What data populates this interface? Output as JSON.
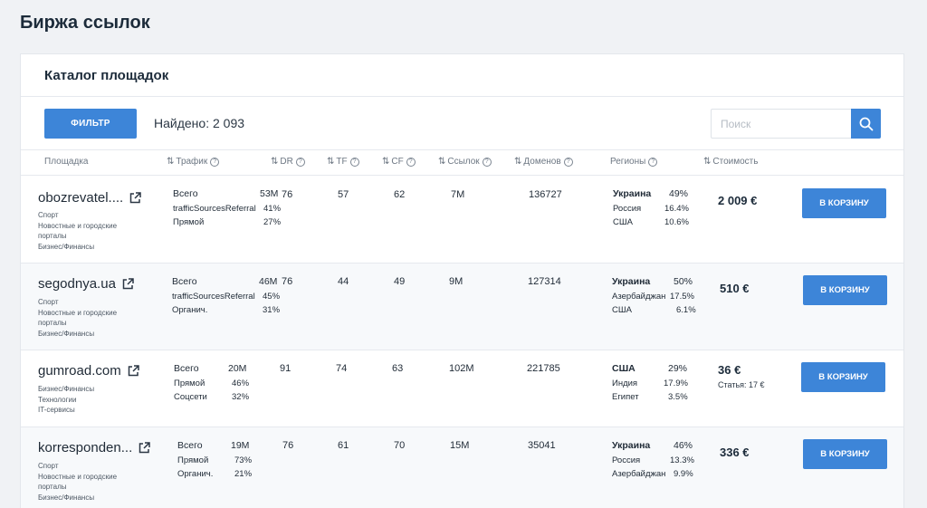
{
  "page_title": "Биржа ссылок",
  "card_title": "Каталог площадок",
  "filter_label": "ФИЛЬТР",
  "found_label": "Найдено:",
  "found_count": "2 093",
  "search_placeholder": "Поиск",
  "columns": {
    "site": "Площадка",
    "traffic": "Трафик",
    "dr": "DR",
    "tf": "TF",
    "cf": "CF",
    "links": "Ссылок",
    "domains": "Доменов",
    "regions": "Регионы",
    "price": "Стоимость"
  },
  "cart_label": "В КОРЗИНУ",
  "rows": [
    {
      "domain": "obozrevatel....",
      "categories": [
        "Спорт",
        "Новостные и городские",
        "порталы",
        "Бизнес/Финансы"
      ],
      "traffic": [
        {
          "label": "Всего",
          "value": "53M"
        },
        {
          "label": "trafficSourcesReferral",
          "value": "41%"
        },
        {
          "label": "Прямой",
          "value": "27%"
        }
      ],
      "dr": "76",
      "tf": "57",
      "cf": "62",
      "links": "7M",
      "domains": "136727",
      "regions": [
        {
          "name": "Украина",
          "value": "49%"
        },
        {
          "name": "Россия",
          "value": "16.4%"
        },
        {
          "name": "США",
          "value": "10.6%"
        }
      ],
      "price": "2 009 €",
      "price_sub": ""
    },
    {
      "domain": "segodnya.ua",
      "categories": [
        "Спорт",
        "Новостные и городские",
        "порталы",
        "Бизнес/Финансы"
      ],
      "traffic": [
        {
          "label": "Всего",
          "value": "46M"
        },
        {
          "label": "trafficSourcesReferral",
          "value": "45%"
        },
        {
          "label": "Органич.",
          "value": "31%"
        }
      ],
      "dr": "76",
      "tf": "44",
      "cf": "49",
      "links": "9M",
      "domains": "127314",
      "regions": [
        {
          "name": "Украина",
          "value": "50%"
        },
        {
          "name": "Азербайджан",
          "value": "17.5%"
        },
        {
          "name": "США",
          "value": "6.1%"
        }
      ],
      "price": "510 €",
      "price_sub": ""
    },
    {
      "domain": "gumroad.com",
      "categories": [
        "Бизнес/Финансы",
        "Технологии",
        "IT-сервисы"
      ],
      "traffic": [
        {
          "label": "Всего",
          "value": "20M"
        },
        {
          "label": "Прямой",
          "value": "46%"
        },
        {
          "label": "Соцсети",
          "value": "32%"
        }
      ],
      "dr": "91",
      "tf": "74",
      "cf": "63",
      "links": "102M",
      "domains": "221785",
      "regions": [
        {
          "name": "США",
          "value": "29%"
        },
        {
          "name": "Индия",
          "value": "17.9%"
        },
        {
          "name": "Египет",
          "value": "3.5%"
        }
      ],
      "price": "36 €",
      "price_sub": "Статья: 17 €"
    },
    {
      "domain": "korresponden...",
      "categories": [
        "Спорт",
        "Новостные и городские",
        "порталы",
        "Бизнес/Финансы"
      ],
      "traffic": [
        {
          "label": "Всего",
          "value": "19M"
        },
        {
          "label": "Прямой",
          "value": "73%"
        },
        {
          "label": "Органич.",
          "value": "21%"
        }
      ],
      "dr": "76",
      "tf": "61",
      "cf": "70",
      "links": "15M",
      "domains": "35041",
      "regions": [
        {
          "name": "Украина",
          "value": "46%"
        },
        {
          "name": "Россия",
          "value": "13.3%"
        },
        {
          "name": "Азербайджан",
          "value": "9.9%"
        }
      ],
      "price": "336 €",
      "price_sub": ""
    }
  ]
}
